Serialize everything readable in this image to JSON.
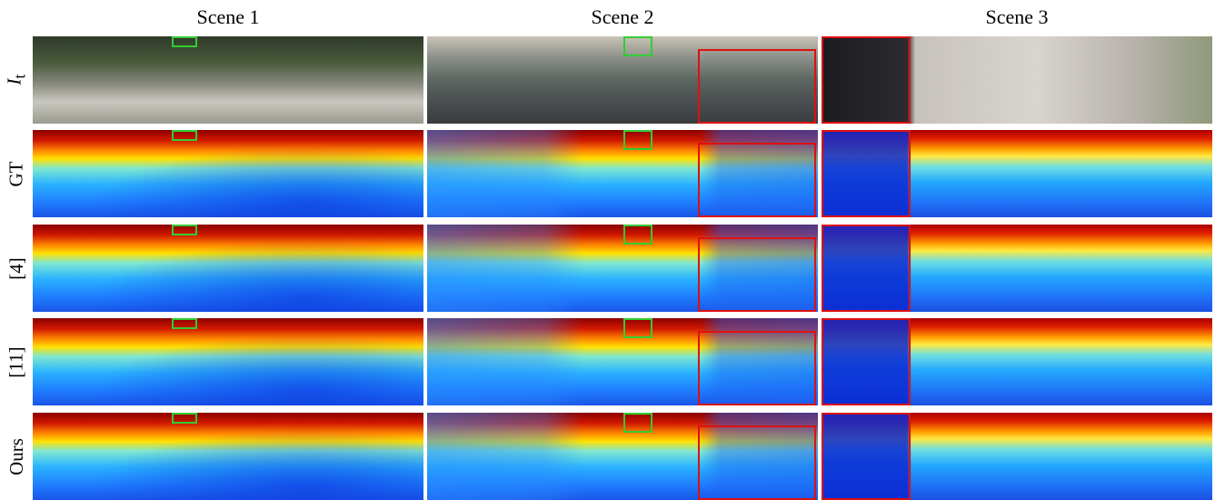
{
  "columns": [
    "Scene 1",
    "Scene 2",
    "Scene 3"
  ],
  "rows": [
    {
      "label": "I",
      "subscript": "t",
      "kind": "rgb"
    },
    {
      "label": "GT",
      "kind": "depth"
    },
    {
      "label": "[4]",
      "kind": "depth"
    },
    {
      "label": "[11]",
      "kind": "depth"
    },
    {
      "label": "Ours",
      "kind": "depth"
    }
  ],
  "highlight_colors": {
    "green": "#33cc33",
    "red": "#dd1111"
  }
}
